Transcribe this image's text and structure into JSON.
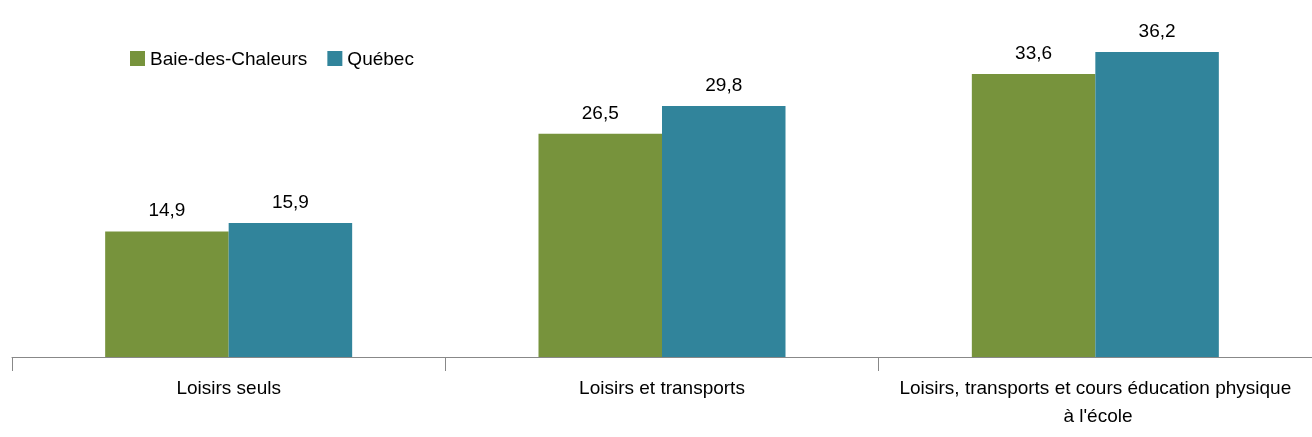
{
  "chart_data": {
    "type": "bar",
    "categories": [
      "Loisirs seuls",
      "Loisirs et transports",
      "Loisirs, transports et cours éducation physique à l'école"
    ],
    "series": [
      {
        "name": "Baie-des-Chaleurs",
        "color": "#77933c",
        "values": [
          14.9,
          26.5,
          33.6
        ],
        "value_labels": [
          "14,9",
          "26,5",
          "33,6"
        ]
      },
      {
        "name": "Québec",
        "color": "#31849b",
        "values": [
          15.9,
          29.8,
          36.2
        ],
        "value_labels": [
          "15,9",
          "29,8",
          "36,2"
        ]
      }
    ],
    "legend": "top left"
  }
}
